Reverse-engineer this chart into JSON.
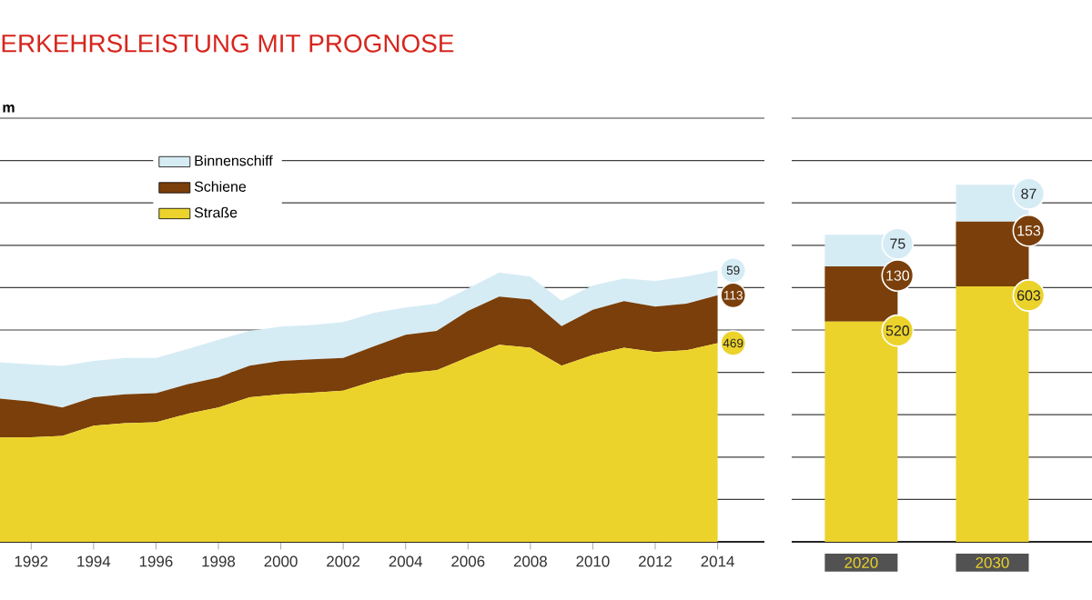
{
  "chart_data": [
    {
      "type": "area",
      "title": "ERKEHRSLEISTUNG MIT PROGNOSE",
      "ylabel": "m",
      "stacked": true,
      "legend": "top left",
      "grid": "y",
      "tick_labels": "x",
      "x": [
        1991,
        1992,
        1993,
        1994,
        1995,
        1996,
        1997,
        1998,
        1999,
        2000,
        2001,
        2002,
        2003,
        2004,
        2005,
        2006,
        2007,
        2008,
        2009,
        2010,
        2011,
        2012,
        2013,
        2014
      ],
      "xlim": [
        1991,
        2015.5
      ],
      "xticks": [
        1992,
        1994,
        1996,
        1998,
        2000,
        2002,
        2004,
        2006,
        2008,
        2010,
        2012,
        2014
      ],
      "ylim": [
        0,
        1000
      ],
      "yticks": [
        {
          "value": 0,
          "label": null
        },
        {
          "value": 100,
          "label": null
        },
        {
          "value": 200,
          "label": null
        },
        {
          "value": 300,
          "label": null
        },
        {
          "value": 400,
          "label": null
        },
        {
          "value": 500,
          "label": null
        },
        {
          "value": 600,
          "label": null
        },
        {
          "value": 700,
          "label": null
        },
        {
          "value": 800,
          "label": null
        },
        {
          "value": 900,
          "label": null
        },
        {
          "value": 1000,
          "label": null
        }
      ],
      "series": [
        {
          "name": "Straße",
          "color": "#ecd32b",
          "values": [
            246,
            247,
            250,
            274,
            280,
            282,
            302,
            317,
            341,
            348,
            352,
            357,
            380,
            398,
            405,
            436,
            465,
            458,
            416,
            441,
            458,
            448,
            452,
            469
          ],
          "value_labels": [
            null,
            null,
            null,
            null,
            null,
            null,
            null,
            null,
            null,
            null,
            null,
            null,
            null,
            null,
            null,
            null,
            null,
            null,
            null,
            null,
            null,
            null,
            null,
            "469"
          ]
        },
        {
          "name": "Schiene",
          "color": "#7a3f0a",
          "values": [
            92,
            84,
            67,
            67,
            68,
            69,
            70,
            71,
            75,
            79,
            79,
            77,
            82,
            91,
            93,
            109,
            114,
            114,
            93,
            107,
            110,
            107,
            110,
            113
          ],
          "value_labels": [
            null,
            null,
            null,
            null,
            null,
            null,
            null,
            null,
            null,
            null,
            null,
            null,
            null,
            null,
            null,
            null,
            null,
            null,
            null,
            null,
            null,
            null,
            null,
            "113"
          ]
        },
        {
          "name": "Binnenschiff",
          "color": "#d6ecf5",
          "values": [
            86,
            88,
            98,
            86,
            86,
            83,
            83,
            89,
            82,
            81,
            81,
            85,
            79,
            64,
            64,
            53,
            57,
            54,
            60,
            57,
            54,
            61,
            64,
            59
          ],
          "value_labels": [
            null,
            null,
            null,
            null,
            null,
            null,
            null,
            null,
            null,
            null,
            null,
            null,
            null,
            null,
            null,
            null,
            null,
            null,
            null,
            null,
            null,
            null,
            null,
            "59"
          ]
        }
      ]
    },
    {
      "type": "bar",
      "stacked": true,
      "grid": "y",
      "tick_labels": "x",
      "data_labels": true,
      "categories": [
        "2020",
        "2030"
      ],
      "ylim": [
        0,
        1000
      ],
      "yticks": [
        {
          "value": 0,
          "label": null
        },
        {
          "value": 100,
          "label": null
        },
        {
          "value": 200,
          "label": null
        },
        {
          "value": 300,
          "label": null
        },
        {
          "value": 400,
          "label": null
        },
        {
          "value": 500,
          "label": null
        },
        {
          "value": 600,
          "label": null
        },
        {
          "value": 700,
          "label": null
        },
        {
          "value": 800,
          "label": null
        },
        {
          "value": 900,
          "label": null
        },
        {
          "value": 1000,
          "label": null
        }
      ],
      "series": [
        {
          "color": "#ecd32b",
          "values": [
            520,
            603
          ]
        },
        {
          "color": "#7a3f0a",
          "values": [
            130,
            153
          ]
        },
        {
          "color": "#d6ecf5",
          "values": [
            75,
            87
          ]
        }
      ]
    }
  ]
}
